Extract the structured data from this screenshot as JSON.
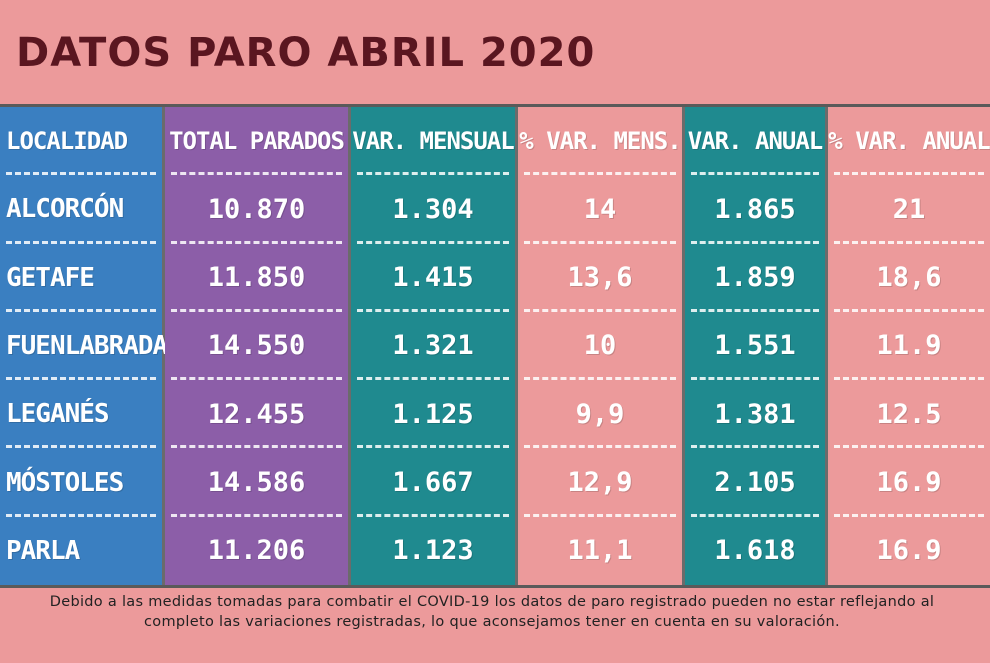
{
  "title": "DATOS PARO ABRIL 2020",
  "headers": [
    "LOCALIDAD",
    "TOTAL PARADOS",
    "VAR. MENSUAL",
    "% VAR. MENS.",
    "VAR. ANUAL",
    "% VAR. ANUAL"
  ],
  "rows": [
    [
      "ALCORCÓN",
      "10.870",
      "1.304",
      "14",
      "1.865",
      "21"
    ],
    [
      "GETAFE",
      "11.850",
      "1.415",
      "13,6",
      "1.859",
      "18,6"
    ],
    [
      "FUENLABRADA",
      "14.550",
      "1.321",
      "10",
      "1.551",
      "11.9"
    ],
    [
      "LEGANÉS",
      "12.455",
      "1.125",
      "9,9",
      "1.381",
      "12.5"
    ],
    [
      "MÓSTOLES",
      "14.586",
      "1.667",
      "12,9",
      "2.105",
      "16.9"
    ],
    [
      "PARLA",
      "11.206",
      "1.123",
      "11,1",
      "1.618",
      "16.9"
    ]
  ],
  "footnote": "Debido a las medidas tomadas para combatir el COVID-19 los datos de paro registrado pueden no estar reflejando al completo las variaciones registradas, lo que aconsejamos tener en cuenta en su valoración.",
  "colors": {
    "background": "#ec9a9b",
    "title": "#5a1620",
    "localidad": "#3a7fc1",
    "total": "#8c5ea8",
    "variacion": "#1f8a8f"
  }
}
